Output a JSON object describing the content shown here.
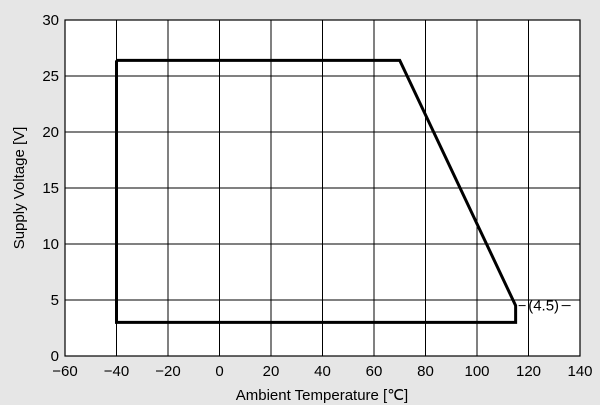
{
  "chart_data": {
    "type": "line",
    "xlabel": "Ambient Temperature [℃]",
    "ylabel": "Supply Voltage [V]",
    "xlim": [
      -60,
      140
    ],
    "ylim": [
      0,
      30
    ],
    "xticks": [
      -60,
      -40,
      -20,
      0,
      20,
      40,
      60,
      80,
      100,
      120,
      140
    ],
    "yticks": [
      0,
      5,
      10,
      15,
      20,
      25,
      30
    ],
    "xtick_labels": [
      "−60",
      "−40",
      "−20",
      "0",
      "20",
      "40",
      "60",
      "80",
      "100",
      "120",
      "140"
    ],
    "ytick_labels": [
      "0",
      "5",
      "10",
      "15",
      "20",
      "25",
      "30"
    ],
    "grid": true,
    "series": [
      {
        "x": [
          -40,
          70,
          115,
          115,
          -40,
          -40
        ],
        "y": [
          26.4,
          26.4,
          4.5,
          3.0,
          3.0,
          26.4
        ]
      }
    ],
    "annotations": [
      {
        "text": "(4.5)",
        "x": 115,
        "y": 4.5
      }
    ]
  }
}
